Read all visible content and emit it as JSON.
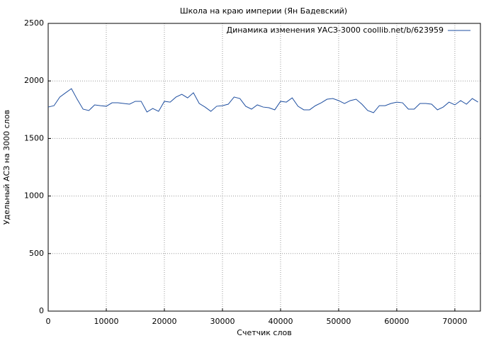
{
  "chart_data": {
    "type": "line",
    "title": "Школа на краю империи (Ян Бадевский)",
    "xlabel": "Счетчик слов",
    "ylabel": "Удельный АСЗ на 3000 слов",
    "legend_position": "upper right",
    "grid": true,
    "xlim": [
      0,
      74400
    ],
    "ylim": [
      0,
      2500
    ],
    "xticks": [
      0,
      10000,
      20000,
      30000,
      40000,
      50000,
      60000,
      70000
    ],
    "yticks": [
      0,
      500,
      1000,
      1500,
      2000,
      2500
    ],
    "x": [
      0,
      1000,
      2000,
      3000,
      4000,
      5000,
      6000,
      7000,
      8000,
      9000,
      10000,
      11000,
      12000,
      13000,
      14000,
      15000,
      16000,
      17000,
      18000,
      19000,
      20000,
      21000,
      22000,
      23000,
      24000,
      25000,
      26000,
      27000,
      28000,
      29000,
      30000,
      31000,
      32000,
      33000,
      34000,
      35000,
      36000,
      37000,
      38000,
      39000,
      40000,
      41000,
      42000,
      43000,
      44000,
      45000,
      46000,
      47000,
      48000,
      49000,
      50000,
      51000,
      52000,
      53000,
      54000,
      55000,
      56000,
      57000,
      58000,
      59000,
      60000,
      61000,
      62000,
      63000,
      64000,
      65000,
      66000,
      67000,
      68000,
      69000,
      70000,
      71000,
      72000,
      73000,
      74000
    ],
    "series": [
      {
        "name": "Динамика изменения УАСЗ-3000 coollib.net/b/623959",
        "color": "#1f4fa0",
        "values": [
          1773,
          1785,
          1860,
          1897,
          1933,
          1840,
          1755,
          1743,
          1792,
          1785,
          1780,
          1810,
          1810,
          1804,
          1798,
          1823,
          1823,
          1730,
          1761,
          1736,
          1823,
          1816,
          1860,
          1884,
          1853,
          1897,
          1804,
          1773,
          1736,
          1780,
          1785,
          1798,
          1860,
          1847,
          1780,
          1755,
          1792,
          1773,
          1767,
          1749,
          1823,
          1816,
          1853,
          1780,
          1749,
          1749,
          1785,
          1810,
          1841,
          1847,
          1829,
          1804,
          1829,
          1841,
          1798,
          1743,
          1724,
          1785,
          1785,
          1804,
          1816,
          1810,
          1755,
          1755,
          1804,
          1804,
          1798,
          1749,
          1773,
          1816,
          1792,
          1829,
          1798,
          1847,
          1816
        ]
      }
    ]
  }
}
